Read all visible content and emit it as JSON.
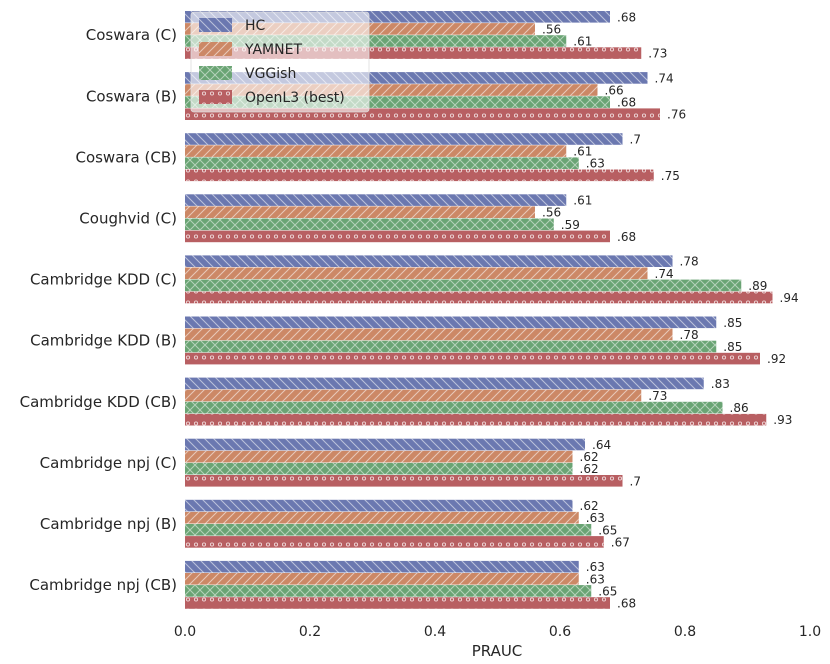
{
  "chart_data": {
    "type": "bar",
    "orientation": "horizontal",
    "title": "",
    "xlabel": "PRAUC",
    "ylabel": "",
    "xlim": [
      0,
      1.0
    ],
    "xticks": [
      "0.0",
      "0.2",
      "0.4",
      "0.6",
      "0.8",
      "1.0"
    ],
    "grid": false,
    "legend_position": "top-left",
    "categories": [
      "Coswara (C)",
      "Coswara (B)",
      "Coswara (CB)",
      "Coughvid (C)",
      "Cambridge KDD (C)",
      "Cambridge KDD (B)",
      "Cambridge KDD (CB)",
      "Cambridge npj (C)",
      "Cambridge npj (B)",
      "Cambridge npj (CB)"
    ],
    "series": [
      {
        "name": "HC",
        "color": "#6b78b0",
        "hatch": "backslash",
        "values": [
          0.68,
          0.74,
          0.7,
          0.61,
          0.78,
          0.85,
          0.83,
          0.64,
          0.62,
          0.63
        ],
        "labels": [
          ".68",
          ".74",
          ".7",
          ".61",
          ".78",
          ".85",
          ".83",
          ".64",
          ".62",
          ".63"
        ]
      },
      {
        "name": "YAMNET",
        "color": "#cc8866",
        "hatch": "slash",
        "values": [
          0.56,
          0.66,
          0.61,
          0.56,
          0.74,
          0.78,
          0.73,
          0.62,
          0.63,
          0.63
        ],
        "labels": [
          ".56",
          ".66",
          ".61",
          ".56",
          ".74",
          ".78",
          ".73",
          ".62",
          ".63",
          ".63"
        ]
      },
      {
        "name": "VGGish",
        "color": "#6aa474",
        "hatch": "cross",
        "values": [
          0.61,
          0.68,
          0.63,
          0.59,
          0.89,
          0.85,
          0.86,
          0.62,
          0.65,
          0.65
        ],
        "labels": [
          ".61",
          ".68",
          ".63",
          ".59",
          ".89",
          ".85",
          ".86",
          ".62",
          ".65",
          ".65"
        ]
      },
      {
        "name": "OpenL3 (best)",
        "color": "#b85f62",
        "hatch": "circles",
        "values": [
          0.73,
          0.76,
          0.75,
          0.68,
          0.94,
          0.92,
          0.93,
          0.7,
          0.67,
          0.68
        ],
        "labels": [
          ".73",
          ".76",
          ".75",
          ".68",
          ".94",
          ".92",
          ".93",
          ".7",
          ".67",
          ".68"
        ]
      }
    ]
  }
}
